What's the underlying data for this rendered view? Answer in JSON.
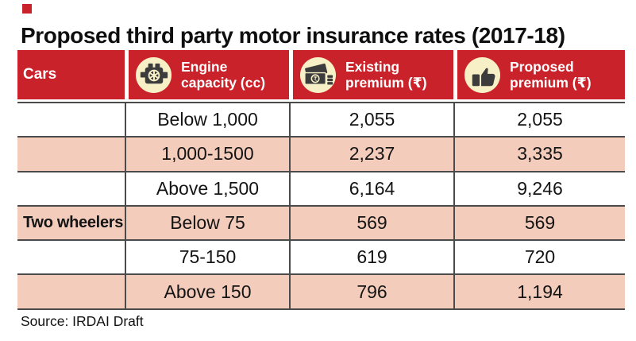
{
  "title": "Proposed third party motor insurance rates (2017-18)",
  "source": "Source: IRDAI Draft",
  "colors": {
    "red": "#ca222b",
    "pink": "#f3ccbc",
    "cream": "#f7f0c7",
    "glyph": "#3c3c3c",
    "line": "#4b4b4b"
  },
  "icons": {
    "engine": "engine-icon",
    "cash": "cash-icon",
    "thumbs_up": "thumbs-up-icon",
    "rupee_glyph": "₹"
  },
  "table": {
    "columns": [
      {
        "key": "cars",
        "label": "Cars",
        "icon": null
      },
      {
        "key": "capacity",
        "label": "Engine capacity (cc)",
        "icon": "engine-icon"
      },
      {
        "key": "existing",
        "label": "Existing premium (₹)",
        "icon": "cash-icon"
      },
      {
        "key": "proposed",
        "label": "Proposed premium (₹)",
        "icon": "thumbs-up-icon"
      }
    ],
    "rows": [
      {
        "cars": "",
        "capacity": "Below 1,000",
        "existing": "2,055",
        "proposed": "2,055"
      },
      {
        "cars": "",
        "capacity": "1,000-1500",
        "existing": "2,237",
        "proposed": "3,335"
      },
      {
        "cars": "",
        "capacity": "Above 1,500",
        "existing": "6,164",
        "proposed": "9,246"
      },
      {
        "cars": "Two wheelers",
        "capacity": "Below 75",
        "existing": "569",
        "proposed": "569"
      },
      {
        "cars": "",
        "capacity": "75-150",
        "existing": "619",
        "proposed": "720"
      },
      {
        "cars": "",
        "capacity": "Above 150",
        "existing": "796",
        "proposed": "1,194"
      }
    ]
  },
  "chart_data": {
    "type": "table",
    "title": "Proposed third party motor insurance rates (2017-18)",
    "columns": [
      "Cars",
      "Engine capacity (cc)",
      "Existing premium (₹)",
      "Proposed premium (₹)"
    ],
    "rows": [
      [
        "Cars",
        "Below 1,000",
        2055,
        2055
      ],
      [
        "Cars",
        "1,000-1500",
        2237,
        3335
      ],
      [
        "Cars",
        "Above 1,500",
        6164,
        9246
      ],
      [
        "Two wheelers",
        "Below 75",
        569,
        569
      ],
      [
        "Two wheelers",
        "75-150",
        619,
        720
      ],
      [
        "Two wheelers",
        "Above 150",
        796,
        1194
      ]
    ],
    "row_striping": [
      "white",
      "pink",
      "white",
      "pink",
      "white",
      "pink"
    ],
    "source": "IRDAI Draft"
  }
}
